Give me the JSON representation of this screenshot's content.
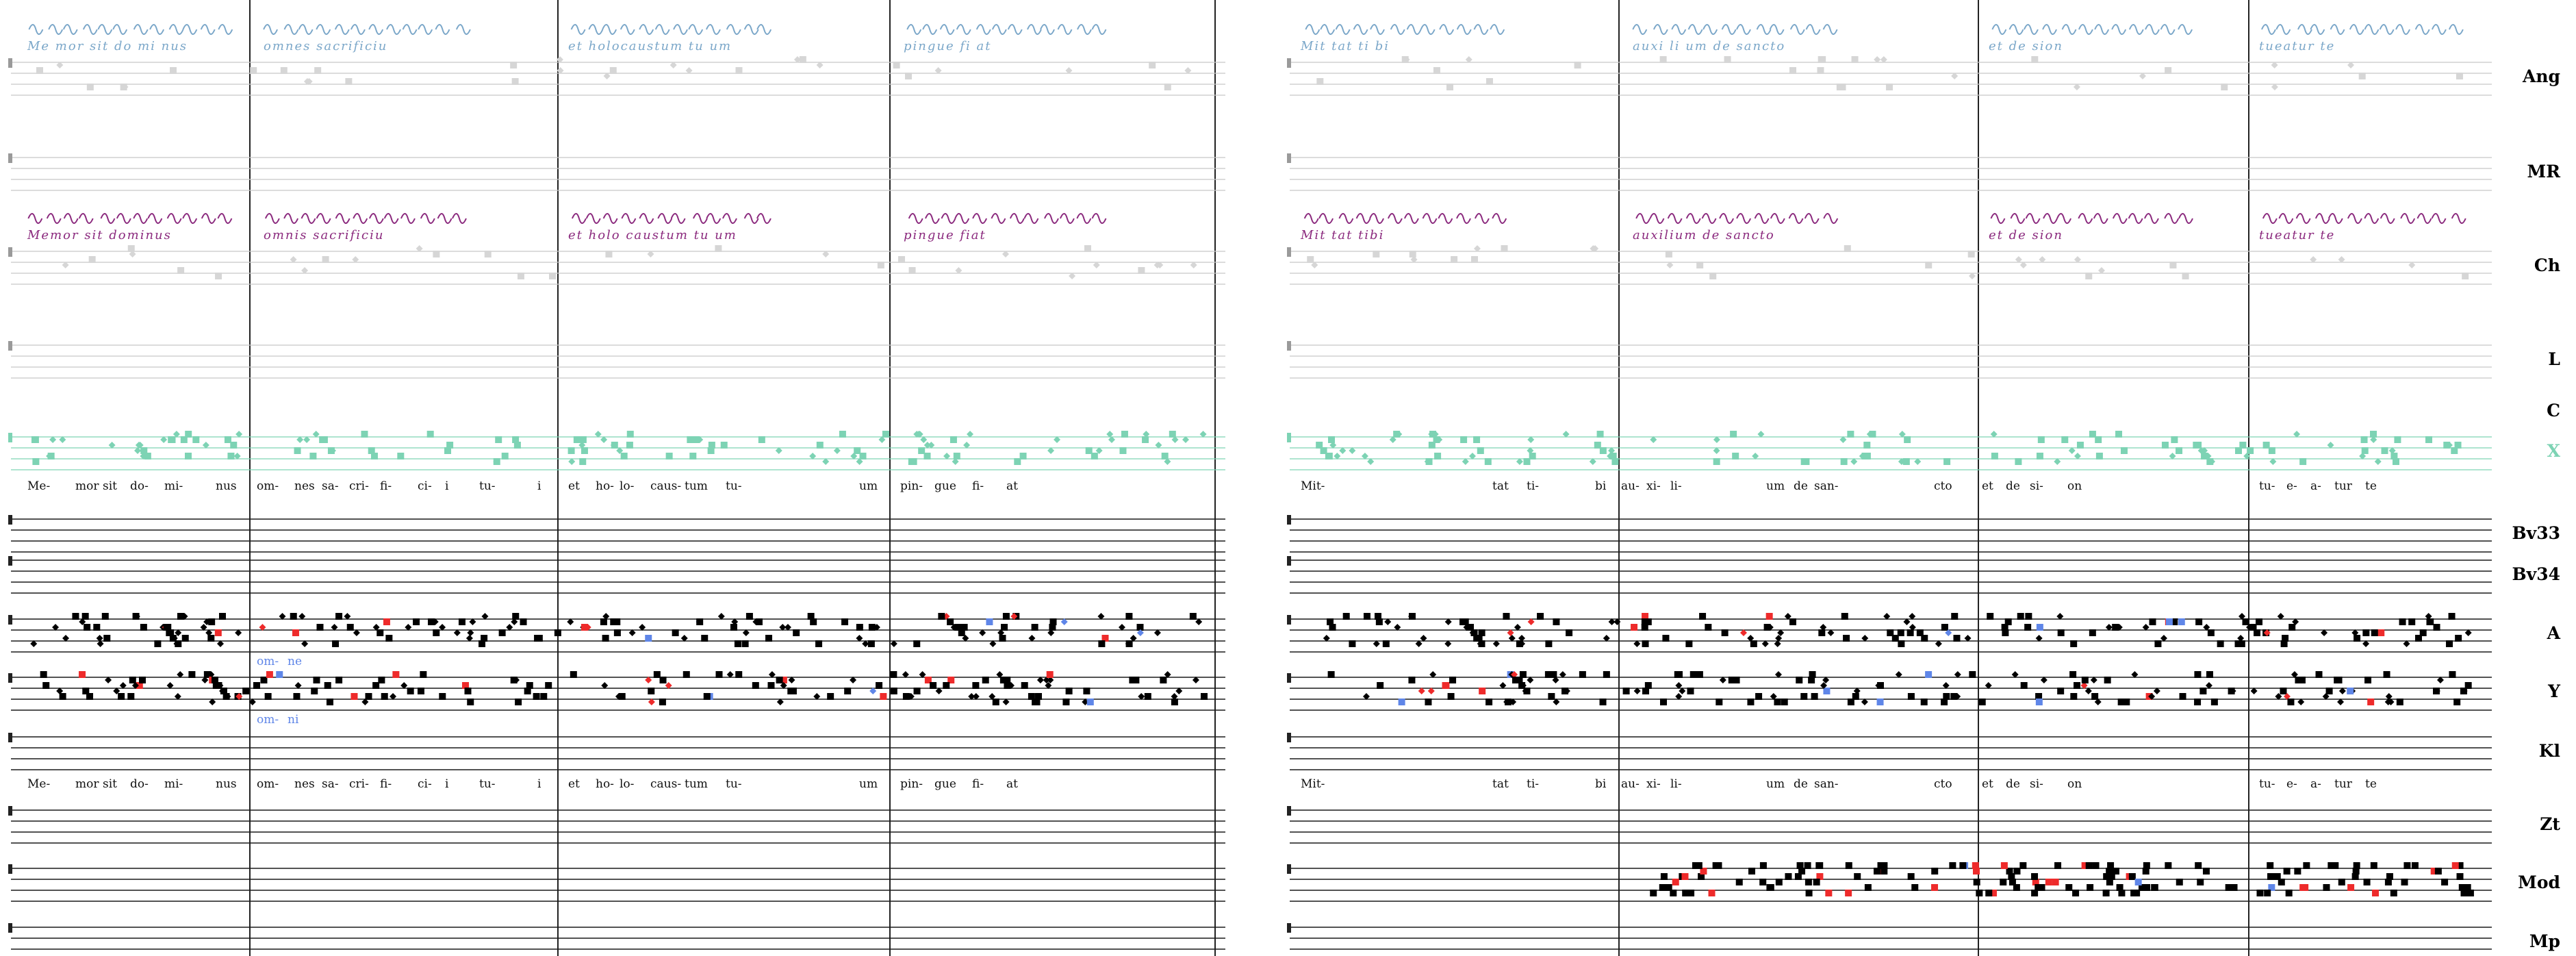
{
  "colors": {
    "staff": "#1a1a1a",
    "staff_faint": "#c8c8c8",
    "neume": "#000000",
    "neume_faint": "#d6d6d6",
    "ms_blue": "#7ba7c9",
    "ms_purple": "#8b2a7e",
    "teal": "#7dd3b4",
    "red": "#ee2b2b",
    "blue": "#5f86e8"
  },
  "groups": [
    {
      "id": "g1",
      "rows": [
        {
          "label": "Ang",
          "manuscript_text": [
            "Me  mor sit do mi nus",
            "omnes sacrificiu",
            "et holocaustum tu  um",
            "pingue fi at",
            "Mit  tat ti bi",
            "auxi li um de sancto",
            "et de sion",
            "tueatur te"
          ]
        },
        {
          "label": "MR"
        },
        {
          "label": "Ch",
          "manuscript_text": [
            "Memor sit dominus",
            "omnis sacrificiu",
            "et holo caustum tu  um",
            "pingue fiat",
            "Mit  tat tibi",
            "auxilium de sancto",
            "et de sion",
            "tueatur te"
          ]
        },
        {
          "label": "L"
        },
        {
          "label": "C"
        },
        {
          "label": "X"
        }
      ]
    },
    {
      "id": "g2",
      "rows": [
        {
          "label": "Bv33"
        },
        {
          "label": "Bv34"
        },
        {
          "label": "A",
          "variant": [
            "om-",
            "ne"
          ]
        },
        {
          "label": "Y",
          "variant": [
            "om-",
            "ni"
          ]
        },
        {
          "label": "Kl"
        }
      ]
    },
    {
      "id": "g3",
      "rows": [
        {
          "label": "Zt"
        },
        {
          "label": "Mod"
        },
        {
          "label": "Mp"
        }
      ]
    }
  ],
  "lyrics_left": [
    "Me-",
    "mor",
    "sit",
    "do-",
    "mi-",
    "nus",
    "om-",
    "nes",
    "sa-",
    "cri-",
    "fi-",
    "ci-",
    "i",
    "tu-",
    "i",
    "et",
    "ho-",
    "lo-",
    "caus-",
    "tum",
    "tu-",
    "um",
    "pin-",
    "gue",
    "fi-",
    "at"
  ],
  "lyrics_right": [
    "Mit-",
    "tat",
    "ti-",
    "bi",
    "au-",
    "xi-",
    "li-",
    "um",
    "de",
    "san-",
    "cto",
    "et",
    "de",
    "si-",
    "on",
    "tu-",
    "e-",
    "a-",
    "tur",
    "te"
  ]
}
